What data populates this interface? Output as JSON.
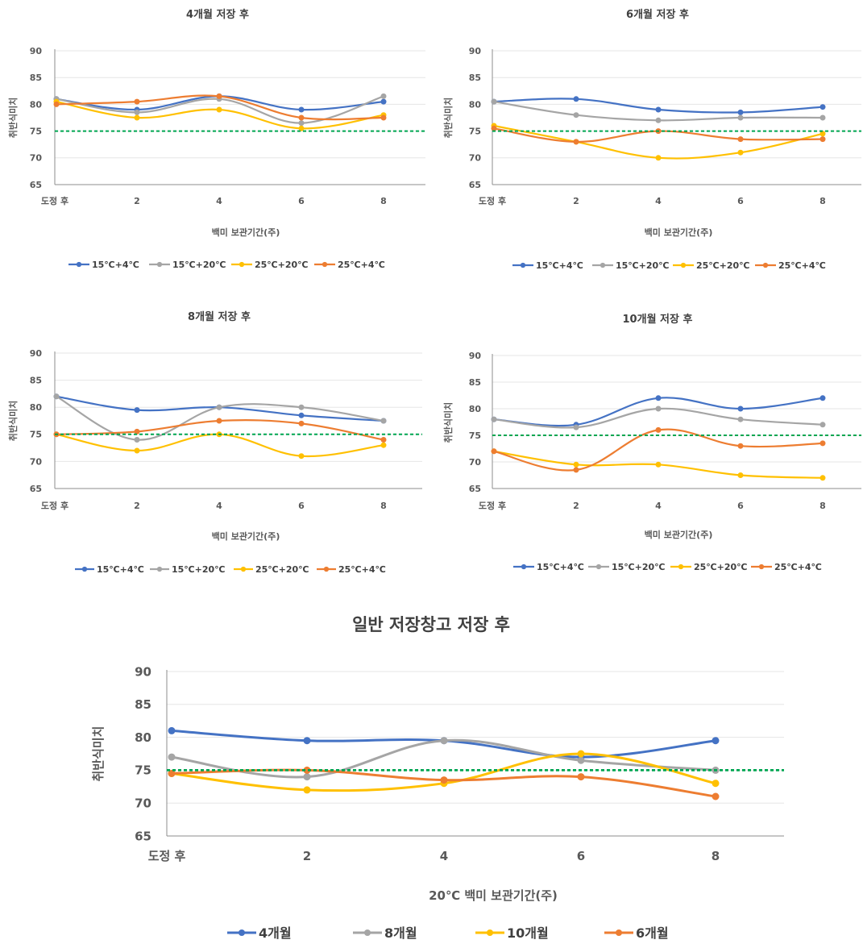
{
  "chart_data": [
    {
      "type": "line",
      "title": "4개월 저장 후",
      "xlabel": "백미 보관기간(주)",
      "ylabel": "취반식미치",
      "categories": [
        "도정 후",
        "2",
        "4",
        "6",
        "8"
      ],
      "ylim": [
        65,
        90
      ],
      "yticks": [
        65,
        70,
        75,
        80,
        85,
        90
      ],
      "reference_line": 75,
      "series": [
        {
          "name": "15℃+4℃",
          "color": "#4472C4",
          "values": [
            81,
            79,
            81.5,
            79,
            80.5
          ]
        },
        {
          "name": "15℃+20℃",
          "color": "#A5A5A5",
          "values": [
            81,
            78.5,
            81,
            76.5,
            81.5
          ]
        },
        {
          "name": "25℃+20℃",
          "color": "#FFC000",
          "values": [
            80.5,
            77.5,
            79,
            75.5,
            78
          ]
        },
        {
          "name": "25℃+4℃",
          "color": "#ED7D31",
          "values": [
            80,
            80.5,
            81.5,
            77.5,
            77.5
          ]
        }
      ]
    },
    {
      "type": "line",
      "title": "6개월 저장 후",
      "xlabel": "백미 보관기간(주)",
      "ylabel": "취반식미치",
      "categories": [
        "도정 후",
        "2",
        "4",
        "6",
        "8"
      ],
      "ylim": [
        65,
        90
      ],
      "yticks": [
        65,
        70,
        75,
        80,
        85,
        90
      ],
      "reference_line": 75,
      "series": [
        {
          "name": "15℃+4℃",
          "color": "#4472C4",
          "values": [
            80.5,
            81,
            79,
            78.5,
            79.5
          ]
        },
        {
          "name": "15℃+20℃",
          "color": "#A5A5A5",
          "values": [
            80.5,
            78,
            77,
            77.5,
            77.5
          ]
        },
        {
          "name": "25℃+20℃",
          "color": "#FFC000",
          "values": [
            76,
            73,
            70,
            71,
            74.5
          ]
        },
        {
          "name": "25℃+4℃",
          "color": "#ED7D31",
          "values": [
            75.5,
            73,
            75,
            73.5,
            73.5
          ]
        }
      ]
    },
    {
      "type": "line",
      "title": "8개월 저장 후",
      "xlabel": "백미 보관기간(주)",
      "ylabel": "취반식미치",
      "categories": [
        "도정 후",
        "2",
        "4",
        "6",
        "8"
      ],
      "ylim": [
        65,
        90
      ],
      "yticks": [
        65,
        70,
        75,
        80,
        85,
        90
      ],
      "reference_line": 75,
      "series": [
        {
          "name": "15℃+4℃",
          "color": "#4472C4",
          "values": [
            82,
            79.5,
            80,
            78.5,
            77.5
          ]
        },
        {
          "name": "15℃+20℃",
          "color": "#A5A5A5",
          "values": [
            82,
            74,
            80,
            80,
            77.5
          ]
        },
        {
          "name": "25℃+20℃",
          "color": "#FFC000",
          "values": [
            75,
            72,
            75,
            71,
            73
          ]
        },
        {
          "name": "25℃+4℃",
          "color": "#ED7D31",
          "values": [
            75,
            75.5,
            77.5,
            77,
            74
          ]
        }
      ]
    },
    {
      "type": "line",
      "title": "10개월 저장 후",
      "xlabel": "백미 보관기간(주)",
      "ylabel": "취반식미치",
      "categories": [
        "도정 후",
        "2",
        "4",
        "6",
        "8"
      ],
      "ylim": [
        65,
        90
      ],
      "yticks": [
        65,
        70,
        75,
        80,
        85,
        90
      ],
      "reference_line": 75,
      "series": [
        {
          "name": "15℃+4℃",
          "color": "#4472C4",
          "values": [
            78,
            77,
            82,
            80,
            82
          ]
        },
        {
          "name": "15℃+20℃",
          "color": "#A5A5A5",
          "values": [
            78,
            76.5,
            80,
            78,
            77
          ]
        },
        {
          "name": "25℃+20℃",
          "color": "#FFC000",
          "values": [
            72,
            69.5,
            69.5,
            67.5,
            67
          ]
        },
        {
          "name": "25℃+4℃",
          "color": "#ED7D31",
          "values": [
            72,
            68.5,
            76,
            73,
            73.5
          ]
        }
      ]
    },
    {
      "type": "line",
      "title": "일반 저장창고 저장 후",
      "xlabel": "20℃ 백미 보관기간(주)",
      "ylabel": "취반식미치",
      "categories": [
        "도정 후",
        "2",
        "4",
        "6",
        "8"
      ],
      "ylim": [
        65,
        90
      ],
      "yticks": [
        65,
        70,
        75,
        80,
        85,
        90
      ],
      "reference_line": 75,
      "series": [
        {
          "name": "4개월",
          "color": "#4472C4",
          "values": [
            81,
            79.5,
            79.5,
            77,
            79.5
          ]
        },
        {
          "name": "8개월",
          "color": "#A5A5A5",
          "values": [
            77,
            74,
            79.5,
            76.5,
            75
          ]
        },
        {
          "name": "10개월",
          "color": "#FFC000",
          "values": [
            74.5,
            72,
            73,
            77.5,
            73
          ]
        },
        {
          "name": "6개월",
          "color": "#ED7D31",
          "values": [
            74.5,
            75,
            73.5,
            74,
            71
          ]
        }
      ]
    }
  ]
}
